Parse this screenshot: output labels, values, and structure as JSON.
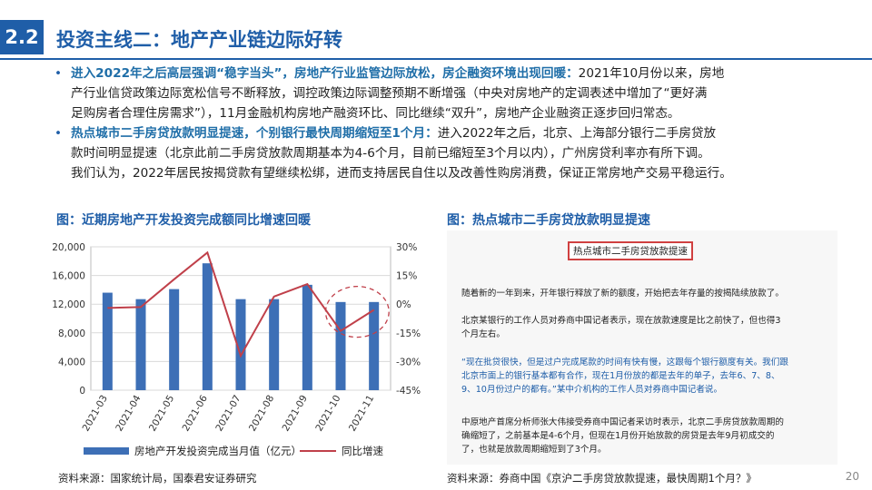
{
  "header": {
    "section_number": "2.2",
    "title": "投资主线二：地产产业链边际好转"
  },
  "bullets": [
    {
      "marker": "•",
      "highlight": "进入2022年之后高层强调“稳字当头”，房地产行业监管边际放松，房企融资环境出现回暖：",
      "lines": [
        "2021年10月份以来，房地",
        "产行业信贷政策边际宽松信号不断释放，调控政策边际调整预期不断增强（中央对房地产的定调表述中增加了“更好满",
        "足购房者合理住房需求”），11月金融机构房地产融资环比、同比继续“双升”，房地产企业融资正逐步回归常态。"
      ]
    },
    {
      "marker": "•",
      "highlight": "热点城市二手房贷放款明显提速，个别银行最快周期缩短至1个月：",
      "lines": [
        "进入2022年之后，北京、上海部分银行二手房贷放",
        "款时间明显提速（北京此前二手房贷放款周期基本为4-6个月，目前已缩短至3个月以内），广州房贷利率亦有所下调。"
      ]
    }
  ],
  "closing": "我们认为，2022年居民按揭贷款有望继续松绑，进而支持居民自住以及改善性购房消费，保证正常房地产交易平稳运行。",
  "figure_left": {
    "title": "图：近期房地产开发投资完成额同比增速回暖",
    "source": "资料来源：国家统计局，国泰君安证券研究"
  },
  "figure_right": {
    "title": "图：热点城市二手房贷放款明显提速",
    "source": "资料来源：券商中国《京沪二手房贷放款提速，最快周期1个月？》"
  },
  "article": {
    "headline": "热点城市二手房贷放款提速",
    "paragraphs": [
      {
        "style": "normal",
        "lines": [
          "随着新的一年到来，开年银行释放了新的额度，开始把去年存量的按揭陆续放款了。"
        ]
      },
      {
        "style": "normal",
        "lines": [
          "北京某银行的工作人员对券商中国记者表示，现在放款速度是比之前快了，但也得3",
          "个月左右。"
        ]
      },
      {
        "style": "blue",
        "lines": [
          "“现在批贷很快，但是过户完成尾款的时间有快有慢，这跟每个银行额度有关。我们跟",
          "北京市面上的银行基本都有合作，现在1月份放的都是去年的单子，去年6、7、8、",
          "9、10月份过户的都有。”某中介机构的工作人员对券商中国记者说。"
        ]
      },
      {
        "style": "normal",
        "lines": [
          "中原地产首席分析师张大伟接受券商中国记者采访时表示，北京二手房贷放款周期的",
          "确缩短了，之前基本是4-6个月，但现在1月份开始放款的房贷是去年9月初成交的",
          "了，也就是放款周期缩短到了3个月。"
        ]
      }
    ]
  },
  "page_number": "20",
  "chart_data": {
    "type": "bar+line",
    "categories": [
      "2021-03",
      "2021-04",
      "2021-05",
      "2021-06",
      "2021-07",
      "2021-08",
      "2021-09",
      "2021-10",
      "2021-11"
    ],
    "series": [
      {
        "name": "房地产开发投资完成当月值（亿元）",
        "type": "bar",
        "axis": "left",
        "color": "#3d6fb6",
        "values": [
          13600,
          12700,
          14100,
          17700,
          12700,
          12700,
          14700,
          12300,
          12300
        ]
      },
      {
        "name": "同比增速",
        "type": "line",
        "axis": "right",
        "color": "#c0404a",
        "values": [
          -0.02,
          -0.015,
          0.13,
          0.27,
          -0.27,
          0.04,
          0.105,
          -0.14,
          -0.03
        ]
      }
    ],
    "left_axis": {
      "min": 0,
      "max": 20000,
      "ticks": [
        0,
        4000,
        8000,
        12000,
        16000,
        20000
      ],
      "labels": [
        "0",
        "4,000",
        "8,000",
        "12,000",
        "16,000",
        "20,000"
      ]
    },
    "right_axis": {
      "min": -0.45,
      "max": 0.3,
      "ticks": [
        -0.45,
        -0.3,
        -0.15,
        0,
        0.15,
        0.3
      ],
      "labels": [
        "-45%",
        "-30%",
        "-15%",
        "0%",
        "15%",
        "30%"
      ]
    },
    "grid": true,
    "legend_position": "bottom",
    "annotation": "dashed-ellipse-highlight-last-two-months"
  }
}
